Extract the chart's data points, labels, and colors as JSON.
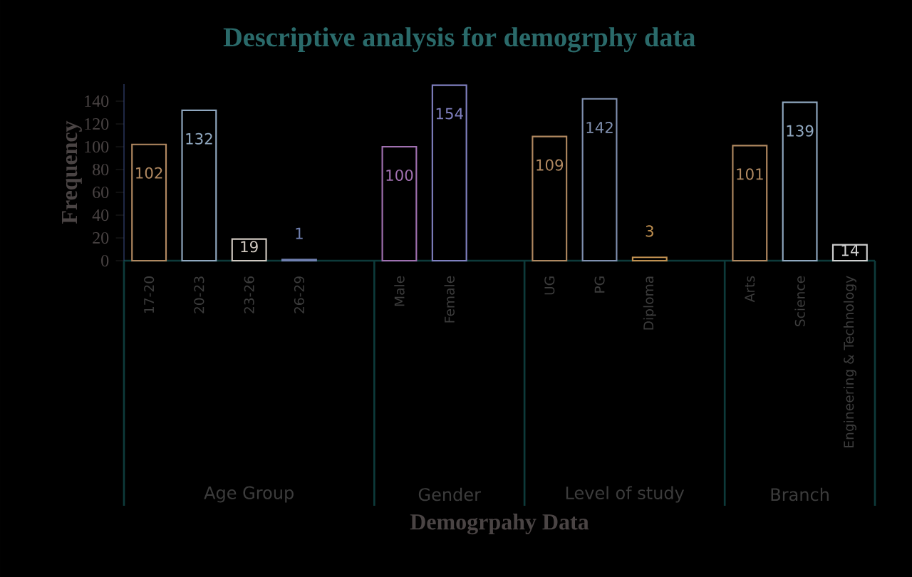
{
  "chart_data": {
    "type": "bar",
    "title": "Descriptive analysis for demogrphy data",
    "xlabel": "Demogrpahy Data",
    "ylabel": "Frequency",
    "categories": [
      "17-20",
      "20-23",
      "23-26",
      "26-29",
      null,
      "Male",
      "Female",
      null,
      "UG",
      "PG",
      "Diploma",
      null,
      "Arts",
      "Science",
      "Engineering & Technology"
    ],
    "values": [
      102,
      132,
      19,
      1,
      null,
      100,
      154,
      null,
      109,
      142,
      3,
      null,
      101,
      139,
      14
    ],
    "colors": [
      "#b08860",
      "#90a8c0",
      "#d0c8c0",
      "#7080b0",
      "#000000",
      "#a070b0",
      "#8080c0",
      "#000000",
      "#b08860",
      "#8090b0",
      "#c09050",
      "#000000",
      "#b08860",
      "#90a8c0",
      "#d0d0d0"
    ],
    "ylim": [
      0,
      155
    ],
    "yticks": [
      0,
      20,
      40,
      60,
      80,
      100,
      120,
      140
    ],
    "data_labels": true,
    "grid": false,
    "annotations": [
      "Age Group",
      "Gender",
      "Level of study",
      "Branch"
    ]
  }
}
